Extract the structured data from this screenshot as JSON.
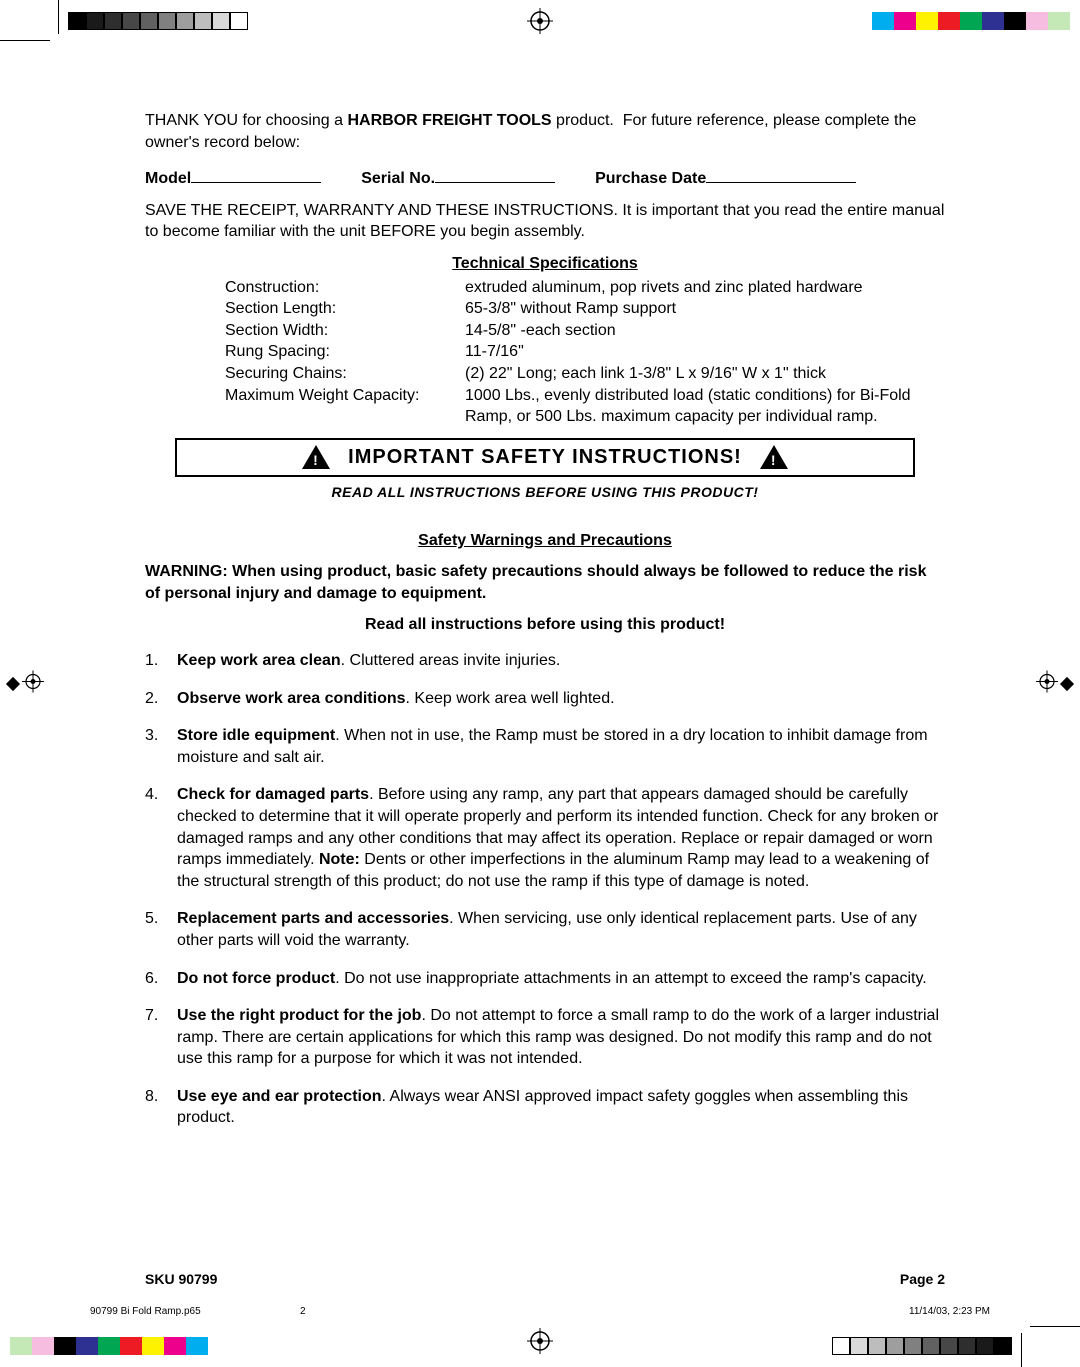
{
  "color_bars": {
    "mono": [
      "#000000",
      "#1a1a1a",
      "#2e2e2e",
      "#474747",
      "#616161",
      "#808080",
      "#9e9e9e",
      "#bdbdbd",
      "#d9d9d9",
      "#ffffff"
    ],
    "hue": [
      "#ffffff",
      "#00aeef",
      "#ec008c",
      "#fff200",
      "#ed1c24",
      "#00a651",
      "#2e3192",
      "#000000",
      "#f7bde0",
      "#c5e8b7"
    ]
  },
  "intro": "THANK YOU for choosing a HARBOR FREIGHT TOOLS product.  For future reference, please complete the owner's record below:",
  "intro_prefix": "T",
  "intro_bold": "HARBOR FREIGHT TOOLS",
  "model_line": {
    "model": "Model",
    "serial": "Serial No.",
    "purchase": "Purchase Date"
  },
  "save": "SAVE THE RECEIPT, WARRANTY AND THESE INSTRUCTIONS.  It is important that you read the entire manual to become familiar with the unit BEFORE you begin assembly.",
  "tech_head": "Technical Specifications",
  "specs": [
    {
      "label": "Construction:",
      "value": "extruded aluminum, pop rivets and zinc plated hardware"
    },
    {
      "label": "Section Length:",
      "value": "65-3/8\" without Ramp support"
    },
    {
      "label": "Section Width:",
      "value": "14-5/8\" -each section"
    },
    {
      "label": "Rung Spacing:",
      "value": "11-7/16\""
    },
    {
      "label": "Securing Chains:",
      "value": "(2) 22\" Long; each link 1-3/8\" L x 9/16\" W x 1\" thick"
    },
    {
      "label": "Maximum Weight Capacity:",
      "value": "1000 Lbs., evenly distributed load (static conditions) for Bi-Fold Ramp, or 500 Lbs. maximum capacity per individual ramp."
    }
  ],
  "important": "IMPORTANT SAFETY INSTRUCTIONS!",
  "read_all": "READ ALL INSTRUCTIONS BEFORE USING THIS PRODUCT!",
  "safety_head": "Safety Warnings and Precautions",
  "warning_para": "WARNING: When using product, basic safety precautions should always be followed to reduce the risk of personal injury and damage to equipment.",
  "read_center": "Read all instructions before using this product!",
  "items": [
    {
      "n": "1.",
      "bold": "Keep work area clean",
      "rest": ".  Cluttered areas invite injuries."
    },
    {
      "n": "2.",
      "bold": "Observe work area conditions",
      "rest": ".  Keep work area well lighted."
    },
    {
      "n": "3.",
      "bold": "Store idle equipment",
      "rest": ".  When not in use, the Ramp must be stored in a dry location to inhibit damage from moisture and salt air."
    },
    {
      "n": "4.",
      "bold": "Check for damaged parts",
      "rest": ".  Before using any ramp, any part that appears damaged should be carefully checked to determine that it will operate properly and perform its intended function. Check for any broken or damaged ramps and any other conditions that may affect its operation. Replace or repair damaged or worn ramps immediately.  ",
      "note_label": "Note:",
      "note_rest": " Dents or other imperfections in the aluminum Ramp may lead to a weakening of the structural strength of this product; do not use the ramp if this type of damage is noted."
    },
    {
      "n": "5.",
      "bold": "Replacement parts and accessories",
      "rest": ".  When servicing, use only identical replacement parts. Use of any other parts will void the warranty."
    },
    {
      "n": "6.",
      "bold": "Do not force product",
      "rest": ".  Do not use inappropriate attachments in an attempt to exceed the ramp's capacity."
    },
    {
      "n": "7.",
      "bold": "Use the right product for the job",
      "rest": ".  Do not attempt to force a small ramp to do the work of a larger industrial ramp. There are certain applications for which this ramp was designed. Do not modify this ramp and do not use this ramp for a purpose for which it was not intended."
    },
    {
      "n": "8.",
      "bold": "Use eye and ear protection",
      "rest": ".  Always wear ANSI approved impact safety goggles when assembling this product."
    }
  ],
  "footer": {
    "sku": "SKU 90799",
    "page": "Page 2"
  },
  "print_footer": {
    "name": "90799 Bi Fold Ramp.p65",
    "pg": "2",
    "ts": "11/14/03, 2:23 PM"
  }
}
